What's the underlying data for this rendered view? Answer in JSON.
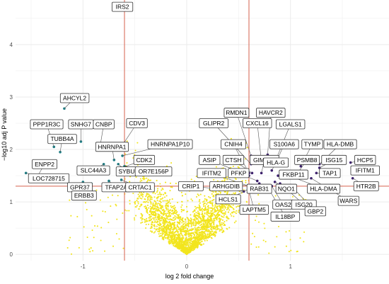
{
  "chart_data": {
    "type": "scatter",
    "title": "",
    "xlabel": "log 2 fold change",
    "ylabel": "−log10 adj P value",
    "xlim": [
      -1.65,
      1.95
    ],
    "ylim": [
      -0.12,
      4.85
    ],
    "x_ticks": [
      -1,
      0,
      1
    ],
    "x_tick_labels": [
      "-1",
      "0",
      "1"
    ],
    "y_ticks": [
      0,
      1,
      2,
      3,
      4
    ],
    "y_tick_labels": [
      "0",
      "1",
      "2",
      "3",
      "4"
    ],
    "grid": true,
    "legend": "none",
    "thresholds": {
      "x": [
        -0.6,
        0.6
      ],
      "y": 1.3
    },
    "colors": {
      "not_significant": "#F2E51E",
      "down_regulated": "#1F7F86",
      "up_regulated": "#3A1B6E",
      "threshold_line": "#D6604D",
      "grid": "#EBEBEB"
    },
    "background_points_note": "dense cloud of non-significant genes",
    "labeled_genes": [
      {
        "name": "IRS2",
        "x": -0.68,
        "y": 4.72,
        "group": "down",
        "lx": -0.62,
        "ly": 4.72
      },
      {
        "name": "AHCYL2",
        "x": -1.18,
        "y": 2.78,
        "group": "down",
        "lx": -1.08,
        "ly": 2.98
      },
      {
        "name": "PPP1R3C",
        "x": -1.28,
        "y": 2.05,
        "group": "down",
        "lx": -1.35,
        "ly": 2.48
      },
      {
        "name": "SNHG7",
        "x": -1.02,
        "y": 2.15,
        "group": "down",
        "lx": -1.02,
        "ly": 2.48
      },
      {
        "name": "CNBP",
        "x": -0.83,
        "y": 2.12,
        "group": "down",
        "lx": -0.8,
        "ly": 2.48
      },
      {
        "name": "TUBB4A",
        "x": -1.22,
        "y": 1.95,
        "group": "down",
        "lx": -1.2,
        "ly": 2.2
      },
      {
        "name": "HNRNPA1",
        "x": -0.7,
        "y": 1.8,
        "group": "down",
        "lx": -0.72,
        "ly": 2.05
      },
      {
        "name": "CDV3",
        "x": -0.62,
        "y": 2.08,
        "group": "down",
        "lx": -0.48,
        "ly": 2.5
      },
      {
        "name": "HNRNPA1P10",
        "x": -0.62,
        "y": 1.88,
        "group": "down",
        "lx": -0.16,
        "ly": 2.1
      },
      {
        "name": "SLC44A3",
        "x": -0.8,
        "y": 1.72,
        "group": "down",
        "lx": -0.9,
        "ly": 1.6
      },
      {
        "name": "CDK2",
        "x": -0.63,
        "y": 1.65,
        "group": "down",
        "lx": -0.41,
        "ly": 1.8
      },
      {
        "name": "ENPP2",
        "x": -1.45,
        "y": 1.45,
        "group": "down",
        "lx": -1.37,
        "ly": 1.72
      },
      {
        "name": "LOC728715",
        "x": -1.55,
        "y": 1.55,
        "group": "down",
        "lx": -1.33,
        "ly": 1.45
      },
      {
        "name": "SYBU",
        "x": -0.66,
        "y": 1.72,
        "group": "down",
        "lx": -0.58,
        "ly": 1.58
      },
      {
        "name": "OR7E156P",
        "x": -0.6,
        "y": 1.68,
        "group": "down",
        "lx": -0.32,
        "ly": 1.58
      },
      {
        "name": "GPR37",
        "x": -1.0,
        "y": 1.38,
        "group": "down",
        "lx": -1.03,
        "ly": 1.28
      },
      {
        "name": "TFAP2A",
        "x": -0.75,
        "y": 1.4,
        "group": "down",
        "lx": -0.68,
        "ly": 1.28
      },
      {
        "name": "CRTAC1",
        "x": -0.63,
        "y": 1.42,
        "group": "down",
        "lx": -0.45,
        "ly": 1.28
      },
      {
        "name": "ERBB3",
        "x": -0.92,
        "y": 1.35,
        "group": "down",
        "lx": -0.99,
        "ly": 1.12
      },
      {
        "name": "RMDN1",
        "x": 0.62,
        "y": 1.88,
        "group": "up",
        "lx": 0.48,
        "ly": 2.7
      },
      {
        "name": "HAVCR2",
        "x": 0.78,
        "y": 1.9,
        "group": "up",
        "lx": 0.81,
        "ly": 2.7
      },
      {
        "name": "GLIPR2",
        "x": 0.62,
        "y": 1.72,
        "group": "up",
        "lx": 0.26,
        "ly": 2.5
      },
      {
        "name": "CXCL16",
        "x": 0.72,
        "y": 1.78,
        "group": "up",
        "lx": 0.68,
        "ly": 2.5
      },
      {
        "name": "LGALS1",
        "x": 0.87,
        "y": 1.85,
        "group": "up",
        "lx": 1.0,
        "ly": 2.48
      },
      {
        "name": "CNIH4",
        "x": 0.6,
        "y": 1.55,
        "group": "up",
        "lx": 0.45,
        "ly": 2.1
      },
      {
        "name": "S100A6",
        "x": 0.85,
        "y": 1.7,
        "group": "up",
        "lx": 0.94,
        "ly": 2.1
      },
      {
        "name": "TYMP",
        "x": 1.1,
        "y": 1.68,
        "group": "up",
        "lx": 1.21,
        "ly": 2.1
      },
      {
        "name": "HLA-DMB",
        "x": 1.28,
        "y": 1.72,
        "group": "up",
        "lx": 1.48,
        "ly": 2.1
      },
      {
        "name": "ASIP",
        "x": 0.6,
        "y": 1.5,
        "group": "up",
        "lx": 0.22,
        "ly": 1.8
      },
      {
        "name": "CTSH",
        "x": 0.63,
        "y": 1.55,
        "group": "up",
        "lx": 0.45,
        "ly": 1.8
      },
      {
        "name": "GIMAP4",
        "x": 0.72,
        "y": 1.55,
        "group": "up",
        "lx": 0.75,
        "ly": 1.8
      },
      {
        "name": "HLA-G",
        "x": 0.82,
        "y": 1.6,
        "group": "up",
        "lx": 0.86,
        "ly": 1.75
      },
      {
        "name": "PSMB8",
        "x": 1.05,
        "y": 1.5,
        "group": "up",
        "lx": 1.16,
        "ly": 1.8
      },
      {
        "name": "ISG15",
        "x": 1.28,
        "y": 1.65,
        "group": "up",
        "lx": 1.42,
        "ly": 1.8
      },
      {
        "name": "HCP5",
        "x": 1.58,
        "y": 1.75,
        "group": "up",
        "lx": 1.72,
        "ly": 1.8
      },
      {
        "name": "IFITM2",
        "x": 0.6,
        "y": 1.3,
        "group": "up",
        "lx": 0.24,
        "ly": 1.55
      },
      {
        "name": "PFKP",
        "x": 0.68,
        "y": 1.4,
        "group": "up",
        "lx": 0.5,
        "ly": 1.55
      },
      {
        "name": "FKBP11",
        "x": 0.88,
        "y": 1.5,
        "group": "up",
        "lx": 1.03,
        "ly": 1.52
      },
      {
        "name": "TAP1",
        "x": 1.25,
        "y": 1.55,
        "group": "up",
        "lx": 1.38,
        "ly": 1.55
      },
      {
        "name": "IFITM1",
        "x": 1.6,
        "y": 1.65,
        "group": "up",
        "lx": 1.72,
        "ly": 1.6
      },
      {
        "name": "CRIP1",
        "x": 0.55,
        "y": 1.2,
        "group": "up",
        "lx": 0.04,
        "ly": 1.3
      },
      {
        "name": "ARHGDIB",
        "x": 0.62,
        "y": 1.32,
        "group": "up",
        "lx": 0.38,
        "ly": 1.3
      },
      {
        "name": "RAB31",
        "x": 0.7,
        "y": 1.35,
        "group": "up",
        "lx": 0.7,
        "ly": 1.25
      },
      {
        "name": "NQO1",
        "x": 0.85,
        "y": 1.38,
        "group": "up",
        "lx": 0.96,
        "ly": 1.25
      },
      {
        "name": "HLA-DMA",
        "x": 1.05,
        "y": 1.45,
        "group": "up",
        "lx": 1.32,
        "ly": 1.25
      },
      {
        "name": "HTR2B",
        "x": 1.6,
        "y": 1.45,
        "group": "up",
        "lx": 1.73,
        "ly": 1.3
      },
      {
        "name": "HCLS1",
        "x": 0.6,
        "y": 1.25,
        "group": "up",
        "lx": 0.4,
        "ly": 1.05
      },
      {
        "name": "OAS2",
        "x": 0.82,
        "y": 1.3,
        "group": "up",
        "lx": 0.93,
        "ly": 0.95
      },
      {
        "name": "ISG20",
        "x": 0.9,
        "y": 1.35,
        "group": "up",
        "lx": 1.13,
        "ly": 0.95
      },
      {
        "name": "WARS",
        "x": 1.2,
        "y": 1.45,
        "group": "up",
        "lx": 1.56,
        "ly": 1.02
      },
      {
        "name": "LAPTM5",
        "x": 0.6,
        "y": 1.22,
        "group": "up",
        "lx": 0.65,
        "ly": 0.85
      },
      {
        "name": "GBP2",
        "x": 1.0,
        "y": 1.32,
        "group": "up",
        "lx": 1.24,
        "ly": 0.82
      },
      {
        "name": "IL18BP",
        "x": 0.78,
        "y": 1.28,
        "group": "up",
        "lx": 0.95,
        "ly": 0.72
      }
    ]
  }
}
